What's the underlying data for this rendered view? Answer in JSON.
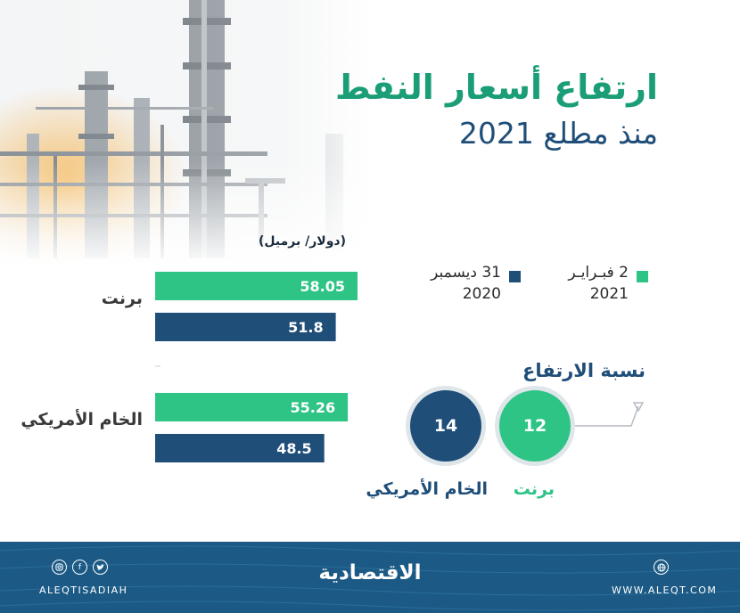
{
  "header": {
    "title": "ارتفاع أسعار النفط",
    "subtitle": "منذ مطلع 2021"
  },
  "legend": {
    "feb": {
      "line1": "2 فبـرايـر",
      "line2": "2021"
    },
    "dec": {
      "line1": "31 ديسمبر",
      "line2": "2020"
    }
  },
  "chart_data": {
    "type": "bar",
    "orientation": "horizontal",
    "ylabel": "(دولار/ برميل)",
    "categories": [
      "برنت",
      "الخام الأمريكي"
    ],
    "series": [
      {
        "name": "2 فبـرايـر 2021",
        "color": "#2ec486",
        "values": [
          58.05,
          55.26
        ]
      },
      {
        "name": "31 ديسمبر 2020",
        "color": "#1f4e79",
        "values": [
          51.8,
          48.5
        ]
      }
    ],
    "xlim": [
      0,
      60
    ],
    "grid": false
  },
  "increase": {
    "title": "نسبة الارتفاع",
    "items": [
      {
        "label": "برنت",
        "value": "12",
        "color": "#2ec486"
      },
      {
        "label": "الخام الأمريكي",
        "value": "14",
        "color": "#1f4e79"
      }
    ]
  },
  "footer": {
    "logo": "الاقتصادية",
    "handle": "ALEQTISADIAH",
    "website": "WWW.ALEQT.COM",
    "icons": [
      "instagram-icon",
      "facebook-icon",
      "twitter-icon",
      "globe-icon"
    ]
  }
}
